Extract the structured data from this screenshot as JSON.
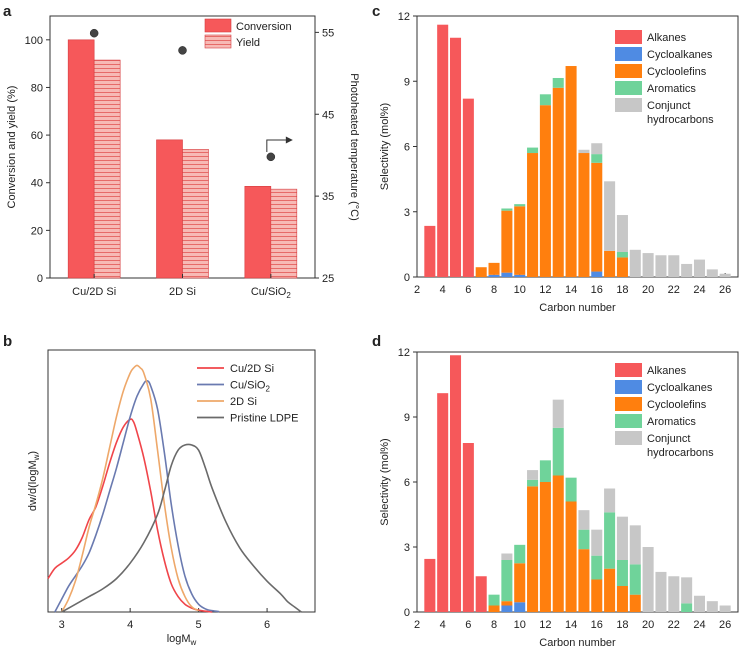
{
  "figure": {
    "panel_letters": [
      "a",
      "b",
      "c",
      "d"
    ]
  },
  "chart_data": [
    {
      "id": "a",
      "type": "bar",
      "categories": [
        [
          "Cu/2D Si",
          ""
        ],
        [
          "2D Si",
          ""
        ],
        [
          "Cu/SiO",
          "2"
        ]
      ],
      "series": [
        {
          "name": "Conversion",
          "values": [
            100,
            58,
            38.5
          ],
          "color": "#f6585a"
        },
        {
          "name": "Yield",
          "values": [
            91.5,
            54,
            37.3
          ],
          "color": "#f6a8a4",
          "pattern": "horizontal-lines"
        }
      ],
      "ylabel": "Conversion and yield (%)",
      "ylim": [
        0,
        110
      ],
      "yticks": [
        0,
        20,
        40,
        60,
        80,
        100
      ],
      "y2label": "Photoheated temperature (°C)",
      "y2lim": [
        25,
        57
      ],
      "y2ticks": [
        25,
        35,
        45,
        55
      ],
      "temperature_points": [
        54.9,
        52.8,
        39.8
      ]
    },
    {
      "id": "b",
      "type": "line",
      "xlabel": [
        "logM",
        "w"
      ],
      "ylabel": [
        "dw/d(logM",
        "w",
        ")"
      ],
      "xlim": [
        2.8,
        6.7
      ],
      "ylim": [
        0,
        1.02
      ],
      "xticks": [
        3,
        4,
        5,
        6
      ],
      "series": [
        {
          "name": [
            "Cu/2D Si",
            ""
          ],
          "color": "#f0454a",
          "x": [
            2.8,
            2.9,
            3.0,
            3.1,
            3.2,
            3.3,
            3.4,
            3.5,
            3.6,
            3.7,
            3.8,
            3.9,
            4.0,
            4.05,
            4.1,
            4.2,
            4.3,
            4.4,
            4.5,
            4.6,
            4.7,
            4.8,
            4.9,
            5.0,
            5.1,
            5.2
          ],
          "y": [
            0.13,
            0.17,
            0.19,
            0.21,
            0.24,
            0.29,
            0.36,
            0.41,
            0.49,
            0.58,
            0.66,
            0.72,
            0.75,
            0.74,
            0.7,
            0.6,
            0.47,
            0.32,
            0.2,
            0.11,
            0.06,
            0.03,
            0.015,
            0.007,
            0.003,
            0.0
          ]
        },
        {
          "name": [
            "Cu/SiO",
            "2"
          ],
          "color": "#6a7ab0",
          "x": [
            2.9,
            3.0,
            3.1,
            3.2,
            3.3,
            3.4,
            3.5,
            3.6,
            3.7,
            3.8,
            3.9,
            4.0,
            4.1,
            4.2,
            4.25,
            4.3,
            4.4,
            4.5,
            4.6,
            4.7,
            4.8,
            4.9,
            5.0,
            5.1,
            5.2,
            5.3
          ],
          "y": [
            0.0,
            0.05,
            0.1,
            0.14,
            0.18,
            0.23,
            0.3,
            0.38,
            0.47,
            0.56,
            0.66,
            0.76,
            0.84,
            0.89,
            0.9,
            0.88,
            0.79,
            0.62,
            0.42,
            0.26,
            0.14,
            0.07,
            0.03,
            0.012,
            0.005,
            0.002
          ]
        },
        {
          "name": [
            "2D Si",
            ""
          ],
          "color": "#eea86a",
          "x": [
            3.0,
            3.1,
            3.2,
            3.3,
            3.4,
            3.5,
            3.6,
            3.7,
            3.8,
            3.9,
            4.0,
            4.05,
            4.1,
            4.15,
            4.2,
            4.3,
            4.4,
            4.5,
            4.6,
            4.7,
            4.8,
            4.9,
            5.0
          ],
          "y": [
            0.0,
            0.05,
            0.12,
            0.22,
            0.33,
            0.42,
            0.52,
            0.64,
            0.76,
            0.86,
            0.93,
            0.95,
            0.96,
            0.95,
            0.93,
            0.83,
            0.63,
            0.42,
            0.25,
            0.13,
            0.06,
            0.02,
            0.005
          ]
        },
        {
          "name": [
            "Pristine LDPE",
            ""
          ],
          "color": "#6a6a6a",
          "x": [
            3.0,
            3.2,
            3.4,
            3.6,
            3.8,
            4.0,
            4.2,
            4.4,
            4.5,
            4.6,
            4.7,
            4.8,
            4.9,
            5.0,
            5.1,
            5.2,
            5.4,
            5.6,
            5.8,
            6.0,
            6.2,
            6.3,
            6.4,
            6.5
          ],
          "y": [
            0.0,
            0.03,
            0.06,
            0.09,
            0.13,
            0.19,
            0.27,
            0.38,
            0.47,
            0.57,
            0.63,
            0.65,
            0.65,
            0.63,
            0.56,
            0.48,
            0.35,
            0.25,
            0.18,
            0.12,
            0.07,
            0.04,
            0.02,
            0.0
          ]
        }
      ]
    },
    {
      "id": "c",
      "type": "bar",
      "stacked": true,
      "xlabel": "Carbon number",
      "ylabel": "Selectivity (mol%)",
      "xlim": [
        2,
        27
      ],
      "ylim": [
        0,
        12
      ],
      "xticks": [
        2,
        4,
        6,
        8,
        10,
        12,
        14,
        16,
        18,
        20,
        22,
        24,
        26
      ],
      "yticks": [
        0,
        3,
        6,
        9,
        12
      ],
      "categories": [
        3,
        4,
        5,
        6,
        7,
        8,
        9,
        10,
        11,
        12,
        13,
        14,
        15,
        16,
        17,
        18,
        19,
        20,
        21,
        22,
        23,
        24,
        25,
        26
      ],
      "series": [
        {
          "name": "Alkanes",
          "color": "#f6585a",
          "values": [
            2.35,
            11.6,
            11.0,
            8.2,
            0,
            0,
            0,
            0,
            0,
            0,
            0,
            0,
            0,
            0,
            0,
            0,
            0,
            0,
            0,
            0,
            0,
            0,
            0,
            0
          ]
        },
        {
          "name": "Cycloalkanes",
          "color": "#4f8be3",
          "values": [
            0,
            0,
            0,
            0,
            0,
            0.1,
            0.2,
            0.1,
            0,
            0,
            0,
            0,
            0,
            0.25,
            0,
            0,
            0,
            0,
            0,
            0,
            0,
            0,
            0,
            0
          ]
        },
        {
          "name": "Cycloolefins",
          "color": "#ff7f0e",
          "values": [
            0,
            0,
            0,
            0,
            0.45,
            0.55,
            2.85,
            3.15,
            5.7,
            7.9,
            8.7,
            9.7,
            5.7,
            5.0,
            1.2,
            0.9,
            0,
            0,
            0,
            0,
            0,
            0,
            0,
            0
          ]
        },
        {
          "name": "Aromatics",
          "color": "#6fd39a",
          "values": [
            0,
            0,
            0,
            0,
            0,
            0,
            0.1,
            0.1,
            0.25,
            0.5,
            0.45,
            0,
            0,
            0.4,
            0,
            0.25,
            0,
            0,
            0,
            0,
            0,
            0,
            0,
            0
          ]
        },
        {
          "name": [
            "Conjunct",
            "hydrocarbons"
          ],
          "color": "#c7c7c7",
          "values": [
            0,
            0,
            0,
            0,
            0,
            0,
            0,
            0,
            0,
            0,
            0,
            0,
            0.15,
            0.5,
            3.2,
            1.7,
            1.25,
            1.1,
            1.0,
            1.0,
            0.6,
            0.8,
            0.35,
            0.15
          ]
        }
      ]
    },
    {
      "id": "d",
      "type": "bar",
      "stacked": true,
      "xlabel": "Carbon number",
      "ylabel": "Selectivity (mol%)",
      "xlim": [
        2,
        27
      ],
      "ylim": [
        0,
        12
      ],
      "xticks": [
        2,
        4,
        6,
        8,
        10,
        12,
        14,
        16,
        18,
        20,
        22,
        24,
        26
      ],
      "yticks": [
        0,
        3,
        6,
        9,
        12
      ],
      "categories": [
        3,
        4,
        5,
        6,
        7,
        8,
        9,
        10,
        11,
        12,
        13,
        14,
        15,
        16,
        17,
        18,
        19,
        20,
        21,
        22,
        23,
        24,
        25,
        26
      ],
      "series": [
        {
          "name": "Alkanes",
          "color": "#f6585a",
          "values": [
            2.45,
            10.1,
            11.85,
            7.8,
            1.65,
            0,
            0,
            0,
            0,
            0,
            0,
            0,
            0,
            0,
            0,
            0,
            0,
            0,
            0,
            0,
            0,
            0,
            0,
            0
          ]
        },
        {
          "name": "Cycloalkanes",
          "color": "#4f8be3",
          "values": [
            0,
            0,
            0,
            0,
            0,
            0,
            0.3,
            0.45,
            0,
            0,
            0,
            0,
            0,
            0,
            0,
            0,
            0,
            0,
            0,
            0,
            0,
            0,
            0,
            0
          ]
        },
        {
          "name": "Cycloolefins",
          "color": "#ff7f0e",
          "values": [
            0,
            0,
            0,
            0,
            0,
            0.3,
            0.2,
            1.8,
            5.8,
            6.0,
            6.3,
            5.1,
            2.9,
            1.5,
            2.0,
            1.2,
            0.8,
            0,
            0,
            0,
            0,
            0,
            0,
            0
          ]
        },
        {
          "name": "Aromatics",
          "color": "#6fd39a",
          "values": [
            0,
            0,
            0,
            0,
            0,
            0.5,
            1.9,
            0.85,
            0.3,
            1.0,
            2.2,
            1.1,
            0.9,
            1.1,
            2.6,
            1.2,
            1.4,
            0,
            0,
            0,
            0.4,
            0,
            0,
            0
          ]
        },
        {
          "name": [
            "Conjunct",
            "hydrocarbons"
          ],
          "color": "#c7c7c7",
          "values": [
            0,
            0,
            0,
            0,
            0,
            0,
            0.3,
            0,
            0.45,
            0,
            1.3,
            0,
            0.9,
            1.2,
            1.1,
            2.0,
            1.8,
            3.0,
            1.85,
            1.65,
            1.2,
            0.75,
            0.5,
            0.3
          ]
        }
      ]
    }
  ]
}
